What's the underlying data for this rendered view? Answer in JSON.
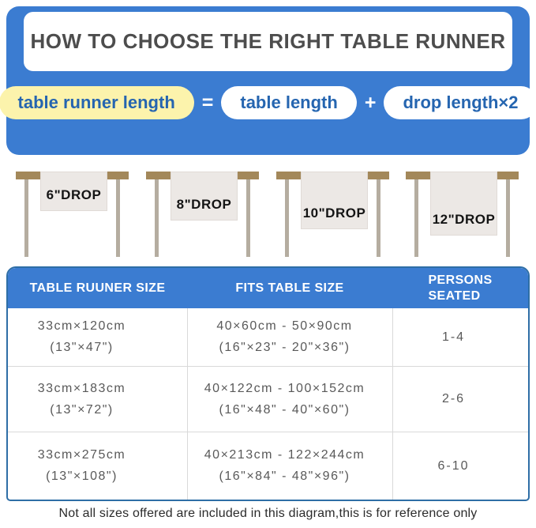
{
  "header": {
    "title": "HOW TO CHOOSE THE RIGHT TABLE RUNNER"
  },
  "formula": {
    "result": "table runner length",
    "equals": "=",
    "operand1": "table length",
    "plus": "+",
    "operand2": "drop length×2"
  },
  "diagram": {
    "tables": [
      {
        "label": "6\"DROP"
      },
      {
        "label": "8\"DROP"
      },
      {
        "label": "10\"DROP"
      },
      {
        "label": "12\"DROP"
      }
    ]
  },
  "size_table": {
    "columns": {
      "runner_size": "TABLE RUUNER SIZE",
      "fits_size": "FITS TABLE SIZE",
      "persons_line1": "PERSONS",
      "persons_line2": "SEATED"
    },
    "rows": [
      {
        "runner_cm": "33cm×120cm",
        "runner_in": "(13\"×47\")",
        "fits_cm": "40×60cm - 50×90cm",
        "fits_in": "(16\"×23\" - 20\"×36\")",
        "persons": "1-4"
      },
      {
        "runner_cm": "33cm×183cm",
        "runner_in": "(13\"×72\")",
        "fits_cm": "40×122cm - 100×152cm",
        "fits_in": "(16\"×48\" - 40\"×60\")",
        "persons": "2-6"
      },
      {
        "runner_cm": "33cm×275cm",
        "runner_in": "(13\"×108\")",
        "fits_cm": "40×213cm - 122×244cm",
        "fits_in": "(16\"×84\" - 48\"×96\")",
        "persons": "6-10"
      }
    ]
  },
  "footnote": "Not all sizes offered are included in this diagram,this is for reference only",
  "colors": {
    "panel_blue": "#3b7cd1",
    "pill_yellow": "#fcf3ac",
    "pill_text_blue": "#2565b0",
    "table_border_blue": "#2e6ea6",
    "tabletop_tan": "#a3885a",
    "leg_gray": "#b5ada0",
    "runner_cloth": "#ece8e5"
  }
}
